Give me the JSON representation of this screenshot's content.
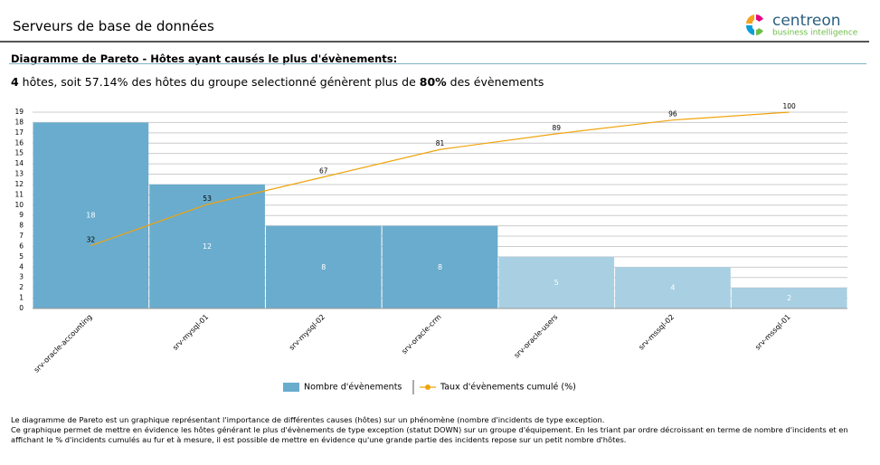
{
  "header": {
    "title": "Serveurs de base de données",
    "logo_name": "centreon",
    "logo_tagline": "business intelligence"
  },
  "section_title": "Diagramme de Pareto - Hôtes ayant causés le plus d'évènements:",
  "summary": {
    "hosts": "4",
    "text1": " hôtes, soit 57.14% des hôtes du groupe selectionné génèrent plus de ",
    "threshold": "80%",
    "text2": " des évènements"
  },
  "chart_data": {
    "type": "pareto",
    "categories": [
      "srv-oracle-accounting",
      "srv-mysql-01",
      "srv-mysql-02",
      "srv-oracle-crm",
      "srv-oracle-users",
      "srv-mssql-02",
      "srv-mssql-01"
    ],
    "series": [
      {
        "name": "Nombre d'évènements",
        "color": "#6aaccd",
        "colors": [
          "#6aaccd",
          "#6aaccd",
          "#6aaccd",
          "#6aaccd",
          "#a9cfe2",
          "#a9cfe2",
          "#a9cfe2"
        ],
        "values": [
          18,
          12,
          8,
          8,
          5,
          4,
          2
        ]
      },
      {
        "name": "Taux d'évènements cumulé (%)",
        "color": "#f0a30a",
        "axis": "y2",
        "values": [
          32,
          53,
          67,
          81,
          89,
          96,
          100
        ]
      }
    ],
    "ylim": [
      0,
      19
    ],
    "yticks": [
      0,
      1,
      2,
      3,
      4,
      5,
      6,
      7,
      8,
      9,
      10,
      11,
      12,
      13,
      14,
      15,
      16,
      17,
      18,
      19
    ],
    "y2lim": [
      0,
      100
    ],
    "grid": true,
    "legend": "bottom"
  },
  "footnote": [
    "Le diagramme de Pareto est un graphique représentant l'importance de différentes causes (hôtes) sur un phénomène (nombre d'incidents de type exception.",
    "Ce graphique permet de mettre en évidence les hôtes générant le plus d'évènements de type exception (statut DOWN) sur un groupe d'équipement. En les triant par ordre décroissant en terme de nombre d'incidents et en affichant le % d'incidents cumulés au fur et à mesure, il est possible de mettre en évidence qu'une grande partie des incidents repose sur un petit nombre d'hôtes."
  ]
}
